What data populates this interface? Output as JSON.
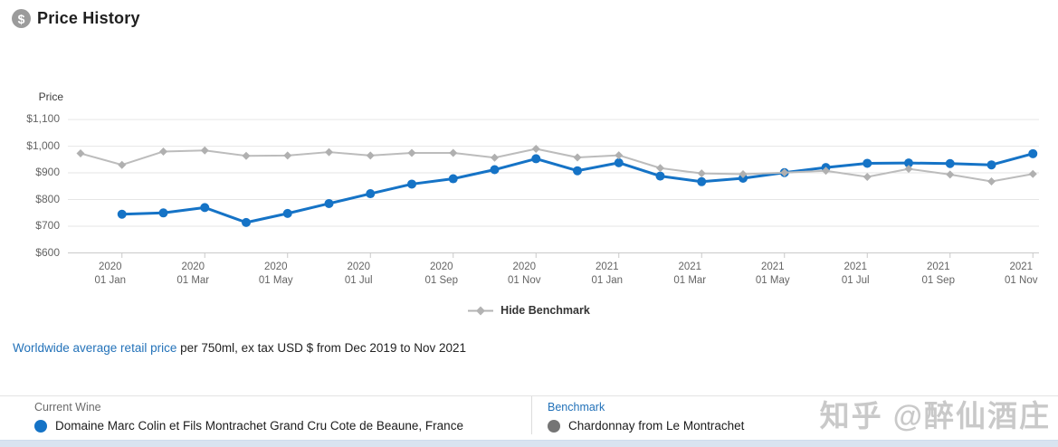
{
  "header": {
    "title": "Price History",
    "icon_glyph": "$"
  },
  "chart_data": {
    "type": "line",
    "title": "Price History",
    "ylabel": "Price",
    "xlabel": "",
    "ylim": [
      600,
      1100
    ],
    "grid": "horizontal-only",
    "y_ticks": [
      {
        "value": 600,
        "label": "$600"
      },
      {
        "value": 700,
        "label": "$700"
      },
      {
        "value": 800,
        "label": "$800"
      },
      {
        "value": 900,
        "label": "$900"
      },
      {
        "value": 1000,
        "label": "$1,000"
      },
      {
        "value": 1100,
        "label": "$1,100"
      }
    ],
    "x_months": [
      "Dec 2019",
      "Jan 2020",
      "Feb 2020",
      "Mar 2020",
      "Apr 2020",
      "May 2020",
      "Jun 2020",
      "Jul 2020",
      "Aug 2020",
      "Sep 2020",
      "Oct 2020",
      "Nov 2020",
      "Dec 2020",
      "Jan 2021",
      "Feb 2021",
      "Mar 2021",
      "Apr 2021",
      "May 2021",
      "Jun 2021",
      "Jul 2021",
      "Aug 2021",
      "Sep 2021",
      "Oct 2021",
      "Nov 2021"
    ],
    "x_ticks": [
      {
        "index": 1,
        "year": "2020",
        "date": "01 Jan"
      },
      {
        "index": 3,
        "year": "2020",
        "date": "01 Mar"
      },
      {
        "index": 5,
        "year": "2020",
        "date": "01 May"
      },
      {
        "index": 7,
        "year": "2020",
        "date": "01 Jul"
      },
      {
        "index": 9,
        "year": "2020",
        "date": "01 Sep"
      },
      {
        "index": 11,
        "year": "2020",
        "date": "01 Nov"
      },
      {
        "index": 13,
        "year": "2021",
        "date": "01 Jan"
      },
      {
        "index": 15,
        "year": "2021",
        "date": "01 Mar"
      },
      {
        "index": 17,
        "year": "2021",
        "date": "01 May"
      },
      {
        "index": 19,
        "year": "2021",
        "date": "01 Jul"
      },
      {
        "index": 21,
        "year": "2021",
        "date": "01 Sep"
      },
      {
        "index": 23,
        "year": "2021",
        "date": "01 Nov"
      }
    ],
    "legend": {
      "label": "Hide Benchmark",
      "position": "bottom-center",
      "marker": "diamond",
      "color": "#b3b3b3"
    },
    "series": [
      {
        "name": "Domaine Marc Colin et Fils Montrachet Grand Cru Cote de Beaune, France",
        "role": "current-wine",
        "color": "#1573c6",
        "marker": "circle",
        "start_index": 1,
        "values": [
          745,
          750,
          770,
          714,
          748,
          785,
          822,
          858,
          878,
          912,
          953,
          908,
          938,
          888,
          867,
          880,
          901,
          920,
          936,
          937,
          935,
          930,
          972
        ]
      },
      {
        "name": "Chardonnay from Le Montrachet",
        "role": "benchmark",
        "color": "#bcbcbc",
        "marker": "diamond",
        "marker_color": "#b0b0b0",
        "start_index": 0,
        "values": [
          973,
          930,
          980,
          984,
          964,
          965,
          978,
          965,
          975,
          975,
          957,
          990,
          958,
          966,
          918,
          898,
          895,
          901,
          908,
          885,
          915,
          894,
          868,
          896
        ]
      }
    ]
  },
  "description": {
    "link_text": "Worldwide average retail price",
    "rest_text": " per 750ml, ex tax USD $ from Dec 2019 to Nov 2021"
  },
  "footer": {
    "current_wine": {
      "label": "Current Wine",
      "name": "Domaine Marc Colin et Fils Montrachet Grand Cru Cote de Beaune, France",
      "dot_color": "#1573c6"
    },
    "benchmark": {
      "label": "Benchmark",
      "name": "Chardonnay from Le Montrachet",
      "dot_color": "#757575"
    }
  },
  "watermark": {
    "text": "知乎 @醉仙酒庄"
  },
  "colors": {
    "accent_blue": "#1573c6",
    "benchmark_gray": "#bcbcbc",
    "link_blue": "#2372b9",
    "gridline": "#e6e6e6",
    "axis_line": "#c9c9c9",
    "bottom_strip": "#d9e4f0"
  }
}
